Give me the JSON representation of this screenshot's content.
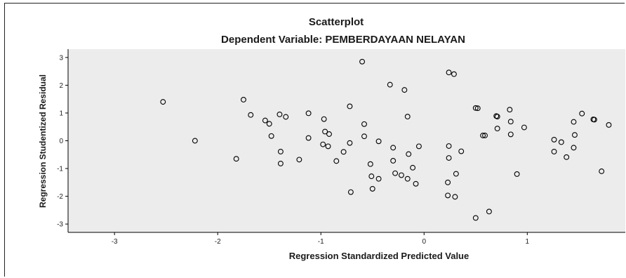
{
  "chart_data": {
    "type": "scatter",
    "title": "Scatterplot",
    "subtitle": "Dependent Variable: PEMBERDAYAAN NELAYAN",
    "xlabel": "Regression Standardized Predicted Value",
    "ylabel": "Regression Studentized Residual",
    "xlim": [
      -3.45,
      1.95
    ],
    "ylim": [
      -3.3,
      3.3
    ],
    "xticks": [
      -3,
      -2,
      -1,
      0,
      1
    ],
    "yticks": [
      -3,
      -2,
      -1,
      0,
      1,
      2,
      3
    ],
    "grid": false,
    "plot_background": "#ececec",
    "marker_color": "#000000",
    "points": [
      [
        -2.53,
        1.4
      ],
      [
        -2.22,
        0.0
      ],
      [
        -1.82,
        -0.65
      ],
      [
        -1.75,
        1.48
      ],
      [
        -1.68,
        0.93
      ],
      [
        -1.54,
        0.73
      ],
      [
        -1.5,
        0.61
      ],
      [
        -1.48,
        0.17
      ],
      [
        -1.4,
        0.95
      ],
      [
        -1.34,
        0.86
      ],
      [
        -1.39,
        -0.39
      ],
      [
        -1.39,
        -0.82
      ],
      [
        -1.21,
        -0.68
      ],
      [
        -1.12,
        0.99
      ],
      [
        -1.12,
        0.1
      ],
      [
        -0.97,
        0.78
      ],
      [
        -0.96,
        0.33
      ],
      [
        -0.92,
        0.24
      ],
      [
        -0.98,
        -0.13
      ],
      [
        -0.93,
        -0.2
      ],
      [
        -0.85,
        -0.73
      ],
      [
        -0.78,
        -0.4
      ],
      [
        -0.72,
        1.24
      ],
      [
        -0.72,
        -0.08
      ],
      [
        -0.71,
        -1.85
      ],
      [
        -0.6,
        2.85
      ],
      [
        -0.58,
        0.6
      ],
      [
        -0.58,
        0.16
      ],
      [
        -0.52,
        -0.84
      ],
      [
        -0.51,
        -1.28
      ],
      [
        -0.5,
        -1.73
      ],
      [
        -0.44,
        -0.02
      ],
      [
        -0.44,
        -1.37
      ],
      [
        -0.33,
        2.02
      ],
      [
        -0.3,
        -0.25
      ],
      [
        -0.3,
        -0.72
      ],
      [
        -0.28,
        -1.17
      ],
      [
        -0.22,
        -1.24
      ],
      [
        -0.19,
        1.83
      ],
      [
        -0.16,
        0.87
      ],
      [
        -0.15,
        -0.48
      ],
      [
        -0.16,
        -1.37
      ],
      [
        -0.11,
        -0.97
      ],
      [
        -0.08,
        -1.55
      ],
      [
        -0.05,
        -0.2
      ],
      [
        0.24,
        2.46
      ],
      [
        0.29,
        2.4
      ],
      [
        0.24,
        -0.19
      ],
      [
        0.24,
        -0.62
      ],
      [
        0.23,
        -1.5
      ],
      [
        0.23,
        -1.97
      ],
      [
        0.3,
        -2.02
      ],
      [
        0.31,
        -1.19
      ],
      [
        0.36,
        -0.38
      ],
      [
        0.5,
        1.18
      ],
      [
        0.52,
        1.17
      ],
      [
        0.5,
        -2.78
      ],
      [
        0.57,
        0.19
      ],
      [
        0.59,
        0.19
      ],
      [
        0.63,
        -2.55
      ],
      [
        0.7,
        0.89
      ],
      [
        0.71,
        0.87
      ],
      [
        0.71,
        0.44
      ],
      [
        0.83,
        1.12
      ],
      [
        0.84,
        0.69
      ],
      [
        0.84,
        0.23
      ],
      [
        0.9,
        -1.2
      ],
      [
        0.97,
        0.48
      ],
      [
        1.26,
        0.04
      ],
      [
        1.26,
        -0.39
      ],
      [
        1.33,
        -0.05
      ],
      [
        1.38,
        -0.59
      ],
      [
        1.45,
        0.68
      ],
      [
        1.46,
        0.21
      ],
      [
        1.45,
        -0.25
      ],
      [
        1.53,
        0.98
      ],
      [
        1.64,
        0.77
      ],
      [
        1.65,
        0.76
      ],
      [
        1.72,
        -1.1
      ],
      [
        1.79,
        0.57
      ]
    ]
  }
}
